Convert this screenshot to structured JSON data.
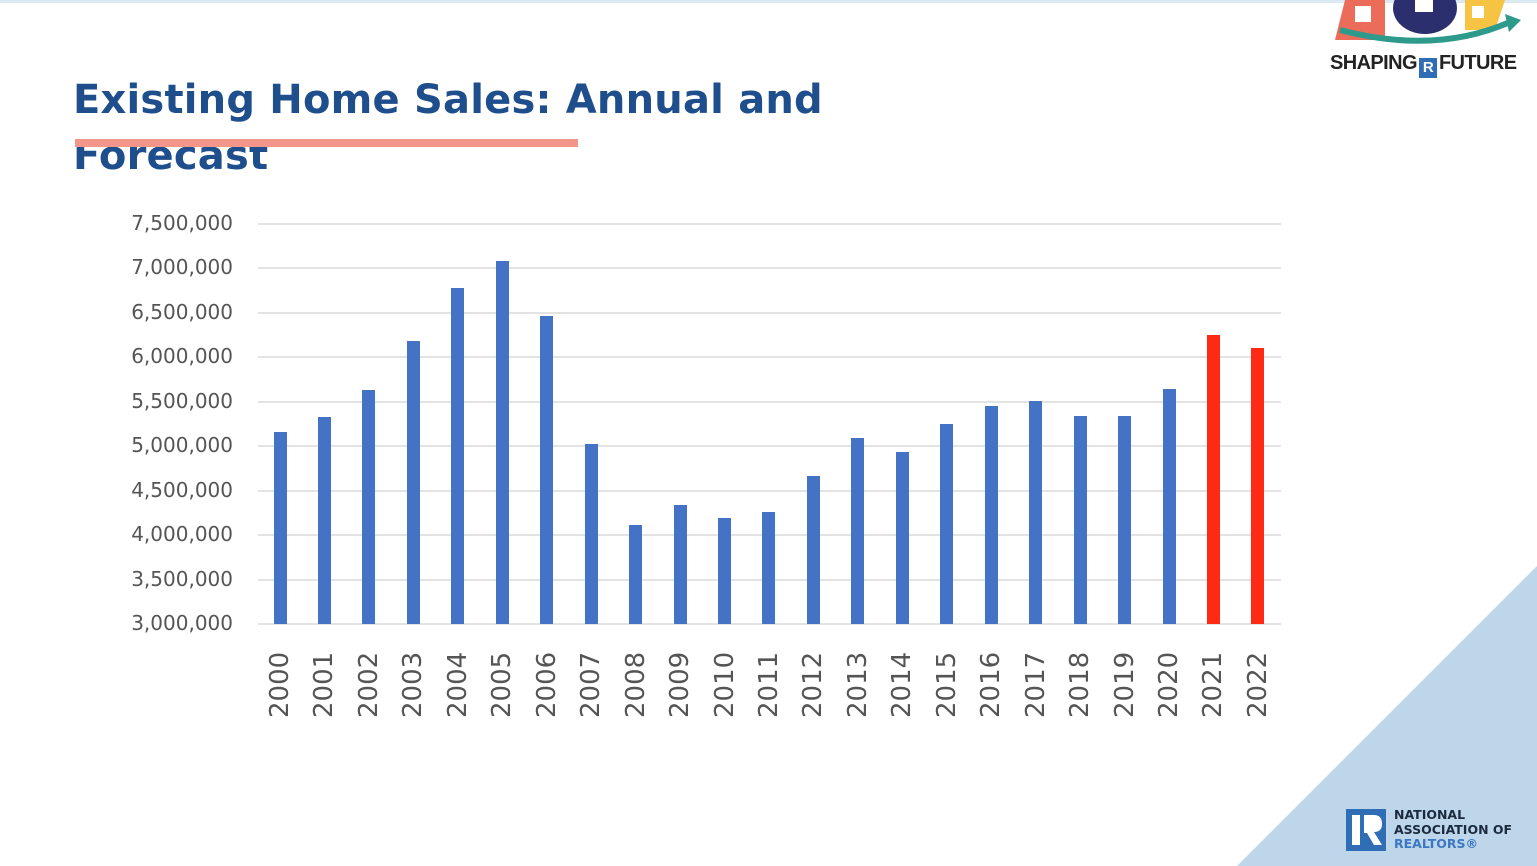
{
  "slide": {
    "title_line1": "Existing Home Sales: Annual and",
    "title_line2": "Forecast",
    "header_logo": {
      "text_left": "SHAPING",
      "text_right": "FUTURE",
      "badge": "R"
    },
    "footer_logo": {
      "line1": "NATIONAL",
      "line2": "ASSOCIATION OF",
      "line3": "REALTORS®"
    },
    "colors": {
      "title": "#1f4e8c",
      "underline": "#f4958a",
      "bar_actual": "#4472c4",
      "bar_forecast": "#ff2a16",
      "corner": "#bed6ea"
    }
  },
  "chart_data": {
    "type": "bar",
    "title": "Existing Home Sales: Annual and Forecast",
    "xlabel": "",
    "ylabel": "",
    "ylim": [
      3000000,
      7500000
    ],
    "yticks": [
      "7,500,000",
      "7,000,000",
      "6,500,000",
      "6,000,000",
      "5,500,000",
      "5,000,000",
      "4,500,000",
      "4,000,000",
      "3,500,000",
      "3,000,000"
    ],
    "grid": true,
    "legend": null,
    "categories": [
      "2000",
      "2001",
      "2002",
      "2003",
      "2004",
      "2005",
      "2006",
      "2007",
      "2008",
      "2009",
      "2010",
      "2011",
      "2012",
      "2013",
      "2014",
      "2015",
      "2016",
      "2017",
      "2018",
      "2019",
      "2020",
      "2021",
      "2022"
    ],
    "series": [
      {
        "name": "Existing Home Sales",
        "values": [
          5160000,
          5330000,
          5630000,
          6180000,
          6780000,
          7080000,
          6470000,
          5030000,
          4110000,
          4340000,
          4190000,
          4260000,
          4660000,
          5090000,
          4940000,
          5250000,
          5450000,
          5510000,
          5340000,
          5340000,
          5640000,
          6250000,
          6100000
        ],
        "forecast_flags": [
          false,
          false,
          false,
          false,
          false,
          false,
          false,
          false,
          false,
          false,
          false,
          false,
          false,
          false,
          false,
          false,
          false,
          false,
          false,
          false,
          false,
          true,
          true
        ]
      }
    ]
  }
}
